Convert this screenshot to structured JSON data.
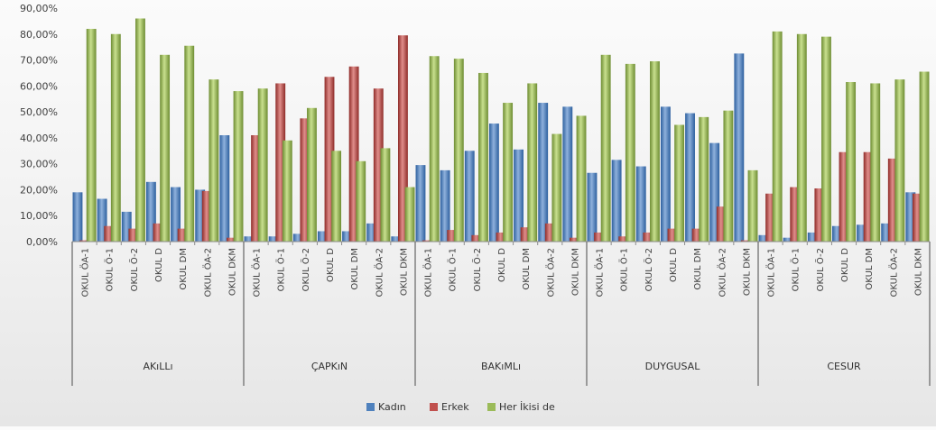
{
  "chart_data": {
    "type": "bar",
    "ylim": [
      0,
      90
    ],
    "yticks": [
      "0,00%",
      "10,00%",
      "20,00%",
      "30,00%",
      "40,00%",
      "50,00%",
      "60,00%",
      "70,00%",
      "80,00%",
      "90,00%"
    ],
    "categories": [
      "OKUL ÖA-1",
      "OKUL Ö-1",
      "OKUL Ö-2",
      "OKUL D",
      "OKUL DM",
      "OKUL ÖA-2",
      "OKUL DKM"
    ],
    "groups": [
      {
        "name": "AKıLLı",
        "series": [
          {
            "name": "Kadın",
            "values": [
              19,
              16.5,
              11.5,
              23,
              21,
              20,
              41
            ]
          },
          {
            "name": "Erkek",
            "values": [
              0.5,
              6,
              5,
              7,
              5,
              19.5,
              1.5
            ]
          },
          {
            "name": "Her İkisi de",
            "values": [
              82,
              80,
              86,
              72,
              75.5,
              62.5,
              58
            ]
          }
        ]
      },
      {
        "name": "ÇAPKıN",
        "series": [
          {
            "name": "Kadın",
            "values": [
              2,
              2,
              3,
              4,
              4,
              7,
              2
            ]
          },
          {
            "name": "Erkek",
            "values": [
              41,
              61,
              47.5,
              63.5,
              67.5,
              59,
              79.5
            ]
          },
          {
            "name": "Her İkisi de",
            "values": [
              59,
              39,
              51.5,
              35,
              31,
              36,
              21
            ]
          }
        ]
      },
      {
        "name": "BAKıMLı",
        "series": [
          {
            "name": "Kadın",
            "values": [
              29.5,
              27.5,
              35,
              45.5,
              35.5,
              53.5,
              52
            ]
          },
          {
            "name": "Erkek",
            "values": [
              0.5,
              4.5,
              2.5,
              3.5,
              5.5,
              7,
              1.5
            ]
          },
          {
            "name": "Her İkisi de",
            "values": [
              71.5,
              70.5,
              65,
              53.5,
              61,
              41.5,
              48.5
            ]
          }
        ]
      },
      {
        "name": "DUYGUSAL",
        "series": [
          {
            "name": "Kadın",
            "values": [
              26.5,
              31.5,
              29,
              52,
              49.5,
              38,
              72.5
            ]
          },
          {
            "name": "Erkek",
            "values": [
              3.5,
              2,
              3.5,
              5,
              5,
              13.5,
              0.5
            ]
          },
          {
            "name": "Her İkisi de",
            "values": [
              72,
              68.5,
              69.5,
              45,
              48,
              50.5,
              27.5
            ]
          }
        ]
      },
      {
        "name": "CESUR",
        "series": [
          {
            "name": "Kadın",
            "values": [
              2.5,
              1.5,
              3.5,
              6,
              6.5,
              7,
              19
            ]
          },
          {
            "name": "Erkek",
            "values": [
              18.5,
              21,
              20.5,
              34.5,
              34.5,
              32,
              18.5
            ]
          },
          {
            "name": "Her İkisi de",
            "values": [
              81,
              80,
              79,
              61.5,
              61,
              62.5,
              65.5
            ]
          }
        ]
      }
    ],
    "legend": {
      "position": "bottom",
      "items": [
        {
          "name": "Kadın",
          "color": "#4f81bd"
        },
        {
          "name": "Erkek",
          "color": "#c0504d"
        },
        {
          "name": "Her İkisi de",
          "color": "#9bbb59"
        }
      ]
    },
    "grid": false,
    "colors": {
      "Kadın": [
        "#2c5f9e",
        "#4f81bd",
        "#8fb1dc"
      ],
      "Erkek": [
        "#8e2b28",
        "#c0504d",
        "#e08e8b"
      ],
      "Her İkisi de": [
        "#6d8c32",
        "#9bbb59",
        "#c9e08f"
      ]
    }
  }
}
